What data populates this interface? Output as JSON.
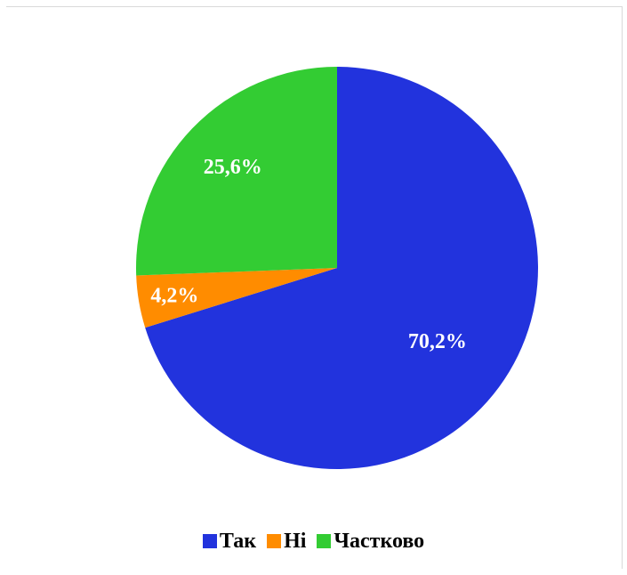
{
  "chart_data": {
    "type": "pie",
    "title": "",
    "categories": [
      "Так",
      "Ні",
      "Частково"
    ],
    "values": [
      70.2,
      4.2,
      25.6
    ],
    "labels": [
      "70,2%",
      "4,2%",
      "25,6%"
    ],
    "colors": [
      "#2233dd",
      "#ff8c00",
      "#33cc33"
    ],
    "legend": "bottom",
    "start_angle": "12 o'clock",
    "direction": "clockwise"
  }
}
